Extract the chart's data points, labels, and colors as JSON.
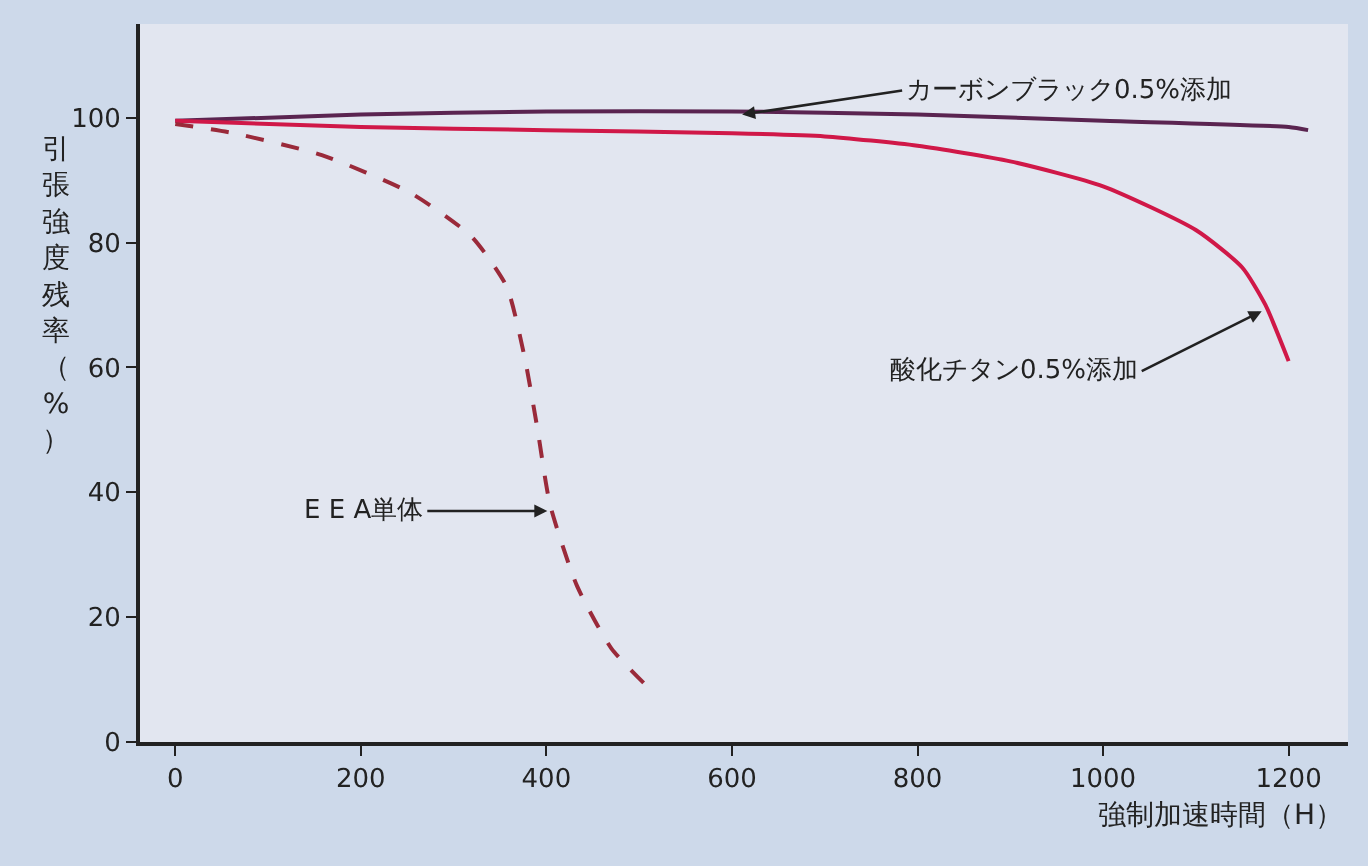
{
  "chart_data": {
    "type": "line",
    "xlabel": "強制加速時間（H）",
    "ylabel": "引張強度残率（%）",
    "xlim": [
      -38,
      1264
    ],
    "xticks": [
      0,
      200,
      400,
      600,
      800,
      1000,
      1200
    ],
    "ylim": [
      0,
      115
    ],
    "yticks": [
      0,
      20,
      40,
      60,
      80,
      100
    ],
    "grid": false,
    "legend": false,
    "series": [
      {
        "color": "#5a2450",
        "line_style": "solid",
        "x": [
          0,
          200,
          400,
          600,
          800,
          1000,
          1200,
          1221
        ],
        "values": [
          99.5,
          100.5,
          101,
          101,
          100.5,
          99.5,
          98.5,
          98
        ]
      },
      {
        "color": "#d01848",
        "line_style": "solid",
        "x": [
          0,
          200,
          400,
          600,
          700,
          800,
          900,
          1000,
          1100,
          1150,
          1175,
          1200
        ],
        "values": [
          99.5,
          98.5,
          98,
          97.5,
          97,
          95.5,
          93,
          89,
          82,
          76,
          70,
          61
        ]
      },
      {
        "color": "#9a2a3a",
        "line_style": "dashed",
        "x": [
          0,
          63,
          158,
          253,
          319,
          357,
          376,
          390,
          404,
          433,
          470,
          508
        ],
        "values": [
          99,
          97.5,
          94,
          88,
          81,
          73,
          62,
          50.5,
          38,
          25,
          15,
          9
        ]
      }
    ],
    "annotations": [
      {
        "text": "カーボンブラック0.5%添加",
        "x": 611,
        "y": 100.5
      },
      {
        "text": "酸化チタン0.5%添加",
        "x": 1171,
        "y": 69
      },
      {
        "text": "E E A単体",
        "x": 401,
        "y": 37
      }
    ]
  }
}
